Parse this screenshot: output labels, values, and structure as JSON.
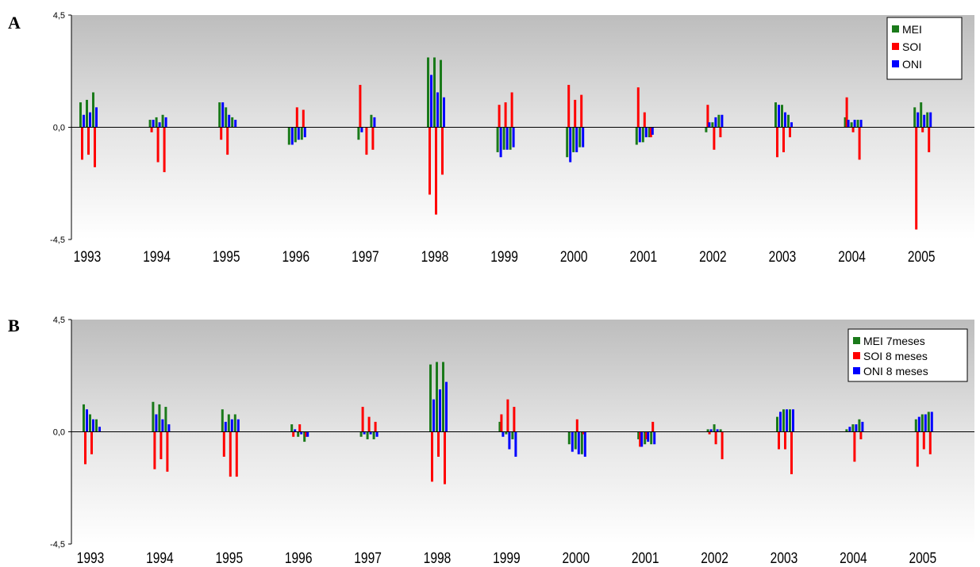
{
  "chart_data": [
    {
      "panel": "A",
      "type": "bar",
      "ylim": [
        -4.5,
        4.5
      ],
      "yticks": [
        "4,5",
        "0,0",
        "-4,5"
      ],
      "categories": [
        "1993",
        "1994",
        "1995",
        "1996",
        "1997",
        "1998",
        "1999",
        "2000",
        "2001",
        "2002",
        "2003",
        "2004",
        "2005"
      ],
      "legend_position": "top-right",
      "grid": false,
      "colors": {
        "MEI": "#1a7a1a",
        "SOI": "#ff0000",
        "ONI": "#0000ff"
      },
      "series": [
        {
          "name": "MEI",
          "values": [
            [
              1.0,
              1.1,
              1.4
            ],
            [
              0.3,
              0.4,
              0.5
            ],
            [
              1.0,
              0.8,
              0.4
            ],
            [
              -0.7,
              -0.6,
              -0.5
            ],
            [
              -0.5,
              0.0,
              0.5
            ],
            [
              2.8,
              2.8,
              2.7
            ],
            [
              -1.0,
              -0.9,
              -0.9
            ],
            [
              -1.2,
              -1.0,
              -0.8
            ],
            [
              -0.7,
              -0.6,
              -0.4
            ],
            [
              -0.2,
              0.2,
              0.5
            ],
            [
              1.0,
              0.9,
              0.5
            ],
            [
              0.4,
              0.2,
              0.3
            ],
            [
              0.8,
              1.0,
              0.6
            ]
          ]
        },
        {
          "name": "SOI",
          "values": [
            [
              -1.3,
              -1.1,
              -1.6
            ],
            [
              -0.2,
              -1.4,
              -1.8
            ],
            [
              -0.5,
              -1.1,
              0.0
            ],
            [
              0.0,
              0.8,
              0.7
            ],
            [
              1.7,
              -1.1,
              -0.9
            ],
            [
              -2.7,
              -3.5,
              -1.9
            ],
            [
              0.9,
              1.0,
              1.4
            ],
            [
              1.7,
              1.1,
              1.3
            ],
            [
              1.6,
              0.6,
              -0.4
            ],
            [
              0.9,
              -0.9,
              -0.4
            ],
            [
              -1.2,
              -1.0,
              -0.4
            ],
            [
              1.2,
              -0.2,
              -1.3
            ],
            [
              -4.1,
              -0.2,
              -1.0
            ]
          ]
        },
        {
          "name": "ONI",
          "values": [
            [
              0.5,
              0.6,
              0.8
            ],
            [
              0.3,
              0.2,
              0.4
            ],
            [
              1.0,
              0.5,
              0.3
            ],
            [
              -0.7,
              -0.5,
              -0.4
            ],
            [
              -0.2,
              0.0,
              0.4
            ],
            [
              2.1,
              1.4,
              1.2
            ],
            [
              -1.2,
              -0.9,
              -0.8
            ],
            [
              -1.4,
              -1.0,
              -0.8
            ],
            [
              -0.6,
              -0.4,
              -0.3
            ],
            [
              0.2,
              0.4,
              0.5
            ],
            [
              0.9,
              0.6,
              0.2
            ],
            [
              0.3,
              0.3,
              0.3
            ],
            [
              0.6,
              0.5,
              0.6
            ]
          ]
        }
      ]
    },
    {
      "panel": "B",
      "type": "bar",
      "ylim": [
        -4.5,
        4.5
      ],
      "yticks": [
        "4,5",
        "0,0",
        "-4,5"
      ],
      "categories": [
        "1993",
        "1994",
        "1995",
        "1996",
        "1997",
        "1998",
        "1999",
        "2000",
        "2001",
        "2002",
        "2003",
        "2004",
        "2005"
      ],
      "legend_position": "top-right",
      "grid": false,
      "colors": {
        "MEI 7meses": "#1a7a1a",
        "SOI 8 meses": "#ff0000",
        "ONI 8 meses": "#0000ff"
      },
      "series": [
        {
          "name": "MEI 7meses",
          "values": [
            [
              1.1,
              0.7,
              0.5
            ],
            [
              1.2,
              1.1,
              1.0
            ],
            [
              0.9,
              0.7,
              0.7
            ],
            [
              0.3,
              -0.2,
              -0.4
            ],
            [
              -0.2,
              -0.3,
              -0.3
            ],
            [
              2.7,
              2.8,
              2.8
            ],
            [
              0.4,
              -0.1,
              -0.3
            ],
            [
              -0.5,
              -0.7,
              -0.9
            ],
            [
              -0.3,
              -0.5,
              -0.5
            ],
            [
              0.1,
              0.3,
              0.1
            ],
            [
              0.6,
              0.9,
              0.9
            ],
            [
              0.1,
              0.3,
              0.5
            ],
            [
              0.5,
              0.7,
              0.8
            ]
          ]
        },
        {
          "name": "SOI 8 meses",
          "values": [
            [
              -1.3,
              -0.9,
              0.0
            ],
            [
              -1.5,
              -1.1,
              -1.6
            ],
            [
              -1.0,
              -1.8,
              -1.8
            ],
            [
              -0.2,
              0.3,
              -0.2
            ],
            [
              1.0,
              0.6,
              0.4
            ],
            [
              -2.0,
              -1.0,
              -2.1
            ],
            [
              0.7,
              1.3,
              1.0
            ],
            [
              0.0,
              0.5,
              -0.1
            ],
            [
              -0.6,
              -0.3,
              0.4
            ],
            [
              -0.1,
              -0.5,
              -1.1
            ],
            [
              -0.7,
              -0.7,
              -1.7
            ],
            [
              0.0,
              -1.2,
              -0.3
            ],
            [
              -1.4,
              -0.7,
              -0.9
            ]
          ]
        },
        {
          "name": "ONI 8 meses",
          "values": [
            [
              0.9,
              0.5,
              0.2
            ],
            [
              0.7,
              0.5,
              0.3
            ],
            [
              0.4,
              0.5,
              0.5
            ],
            [
              0.1,
              -0.1,
              -0.2
            ],
            [
              -0.1,
              -0.1,
              -0.2
            ],
            [
              1.3,
              1.7,
              2.0
            ],
            [
              -0.2,
              -0.7,
              -1.0
            ],
            [
              -0.8,
              -0.9,
              -1.0
            ],
            [
              -0.6,
              -0.4,
              -0.5
            ],
            [
              0.1,
              0.1,
              0.0
            ],
            [
              0.8,
              0.9,
              0.9
            ],
            [
              0.2,
              0.3,
              0.4
            ],
            [
              0.6,
              0.7,
              0.8
            ]
          ]
        }
      ]
    }
  ]
}
